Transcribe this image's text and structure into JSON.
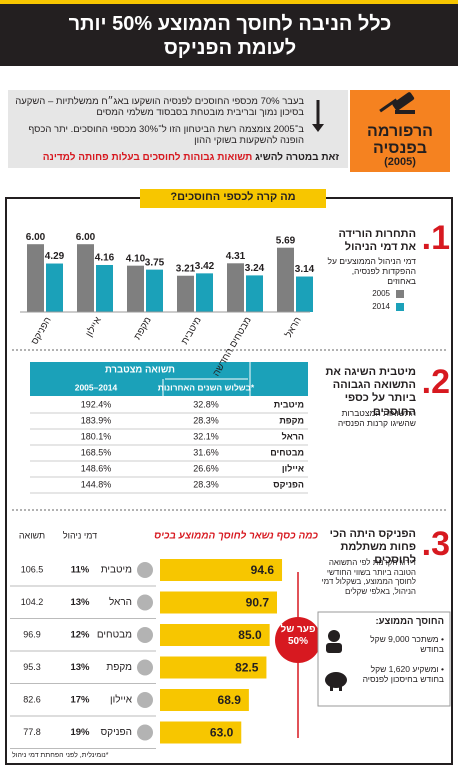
{
  "header": {
    "title": "כלל הניבה לחוסך הממוצע 50% יותר לעומת הפניקס"
  },
  "reform": {
    "label": "הרפורמה בפנסיה",
    "year": "(2005)",
    "paragraphs": [
      "בעבר 70% מכספי החוסכים לפנסיה הושקעו באג״ח ממשלתיות – השקעה בסיכון נמוך ובריבית מובטחת בסבסוד משלמי המסים",
      "ב־2005 צומצמה רשת הביטחון הזו ל־30% מכספי החוסכים. יתר הכסף הופנה להשקעות בשוקי ההון"
    ],
    "goal": "זאת במטרה להשיג",
    "goal_highlight": "תשואות גבוהות לחוסכים בעלות פחותה למדינה"
  },
  "section_title": "מה קרה לכספי החוסכים?",
  "sections": [
    {
      "number": "1.",
      "title": "התחרות הורידה את דמי הניהול",
      "subtitle": "דמי הניהול הממוצעים על ההפקדות לפנסיה, באחוזים"
    },
    {
      "number": "2.",
      "title": "מיטבית השיגה את התשואה הגבוהה ביותר על כספי החוסכים",
      "subtitle": "התשואות המצטברות שהשיגו קרנות הפנסיה"
    },
    {
      "number": "3.",
      "title": "הפניקס היתה הכי פחות משתלמת לחוסכים",
      "subtitle": "דירוג הקרנות לפי התשואה הטובה ביותר בשווי החודשי לחוסך הממוצע, בשקלול דמי הניהול, באלפי שקלים"
    }
  ],
  "chart_data": [
    {
      "type": "bar",
      "categories": [
        "הפניקס",
        "איילון",
        "מקפת",
        "מיטבית",
        "מבטחים החדשה",
        "הראל"
      ],
      "series": [
        {
          "name": "2005",
          "color": "#7f7f7f",
          "values": [
            6,
            6,
            4.1,
            3.21,
            4.31,
            5.69
          ],
          "value_labels": [
            "6.00",
            "6.00",
            "4.10",
            "3.21",
            "4.31",
            "5.69"
          ]
        },
        {
          "name": "2014",
          "color": "#1ba1b9",
          "values": [
            4.29,
            4.16,
            3.75,
            3.42,
            3.24,
            3.14
          ],
          "value_labels": [
            "4.29",
            "4.16",
            "3.75",
            "3.42",
            "3.24",
            "3.14"
          ]
        }
      ]
    },
    {
      "type": "barh",
      "title": "כמה כסף נשאר לחוסך הממוצע בכיס",
      "categories": [
        "מיטבית",
        "הראל",
        "מבטחים",
        "מקפת",
        "איילון",
        "הפניקס"
      ],
      "values": [
        94.6,
        90.7,
        85,
        82.5,
        68.9,
        63
      ],
      "value_labels": [
        "94.6",
        "90.7",
        "85.0",
        "82.5",
        "68.9",
        "63.0"
      ],
      "color": "#f7c600",
      "fees": {
        "name": "דמי ניהול",
        "labels": [
          "11%",
          "13%",
          "12%",
          "13%",
          "17%",
          "19%"
        ]
      },
      "returns": {
        "name": "תשואה",
        "values": [
          106.5,
          104.2,
          96.9,
          95.3,
          82.6,
          77.8
        ]
      },
      "annotation": "פער של 50%"
    }
  ],
  "table": {
    "group_header": "תשואה מצטברת",
    "columns": [
      "בשלוש השנים האחרונות*",
      "2005–2014"
    ],
    "rows": [
      [
        "מיטבית",
        "32.8%",
        "192.4%"
      ],
      [
        "מקפת",
        "28.3%",
        "183.9%"
      ],
      [
        "הראל",
        "32.1%",
        "180.1%"
      ],
      [
        "מבטחים",
        "31.6%",
        "168.5%"
      ],
      [
        "איילון",
        "26.6%",
        "148.6%"
      ],
      [
        "הפניקס",
        "28.3%",
        "144.8%"
      ]
    ]
  },
  "average_saver": {
    "title": "החוסך הממוצע:",
    "items": [
      "• משתכר 9,000 שקל בחודש",
      "• ומשקיע 1,620 שקל בחודש בחיסכון לפנסיה"
    ]
  },
  "footnote": "*נומינלית, לפני הפחתת דמי ניהול"
}
